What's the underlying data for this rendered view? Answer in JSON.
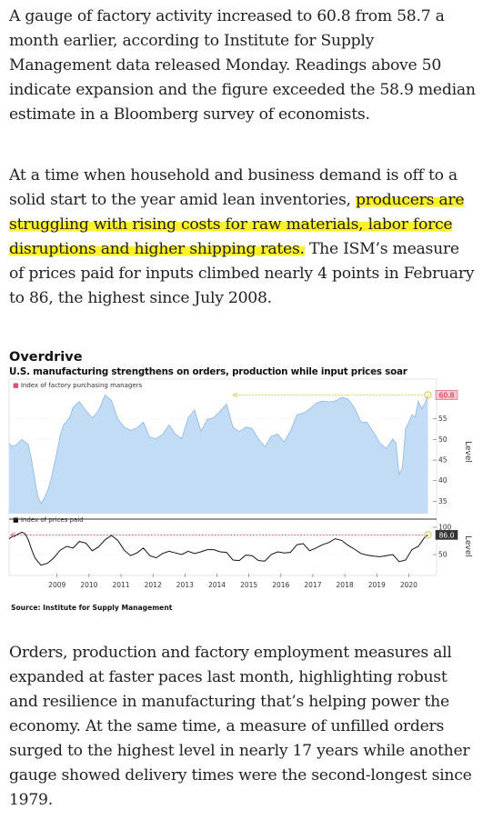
{
  "article": {
    "paragraph1": "A gauge of factory activity increased to 60.8 from 58.7 a month earlier, according to Institute for Supply Management data released Monday. Readings above 50 indicate expansion and the figure exceeded the 58.9 median estimate in a Bloomberg survey of economists.",
    "paragraph2_before": "At a time when household and business demand is off to a solid start to the year amid lean inventories, ",
    "paragraph2_highlight": "producers are struggling with rising costs for raw materials, labor force disruptions and higher shipping rates.",
    "paragraph2_after": " The ISM’s measure of prices paid for inputs climbed nearly 4 points in February to 86, the highest since July 2008.",
    "paragraph3": "Orders, production and factory employment measures all expanded at faster paces last month, highlighting robust and resilience in manufacturing that’s helping power the economy. At the same time, a measure of unfilled orders surged to the highest level in nearly 17 years while another gauge showed delivery times were the second-longest since 1979."
  },
  "highlight_color": "#fff22a",
  "chart_data": {
    "type": "area",
    "title": "Overdrive",
    "subtitle": "U.S. manufacturing strengthens on orders, production while input prices soar",
    "source": "Source: Institute for Supply Management",
    "x_ticks": [
      "2009",
      "2010",
      "2011",
      "2012",
      "2013",
      "2014",
      "2015",
      "2016",
      "2017",
      "2018",
      "2019",
      "2020"
    ],
    "xlim": [
      2008.0,
      2021.2
    ],
    "panels": [
      {
        "legend": "Index of factory purchasing managers",
        "legend_color": "#e0506a",
        "ylabel": "Level",
        "ylim": [
          32,
          62
        ],
        "y_ticks": [
          "55",
          "50",
          "45",
          "40",
          "35"
        ],
        "y_tick_values": [
          55,
          50,
          45,
          40,
          35
        ],
        "last_value_label": "60.8",
        "last_value": 60.8,
        "fill_color": "#c3dcf6",
        "line_color": "#8fb6e3",
        "x": [
          2008.0,
          2008.1,
          2008.2,
          2008.3,
          2008.4,
          2008.5,
          2008.6,
          2008.7,
          2008.8,
          2008.9,
          2009.0,
          2009.1,
          2009.2,
          2009.3,
          2009.4,
          2009.5,
          2009.6,
          2009.7,
          2009.8,
          2009.9,
          2010.0,
          2010.2,
          2010.4,
          2010.6,
          2010.8,
          2011.0,
          2011.2,
          2011.4,
          2011.6,
          2011.8,
          2012.0,
          2012.2,
          2012.4,
          2012.6,
          2012.8,
          2013.0,
          2013.2,
          2013.4,
          2013.6,
          2013.8,
          2014.0,
          2014.2,
          2014.4,
          2014.6,
          2014.8,
          2015.0,
          2015.2,
          2015.4,
          2015.6,
          2015.8,
          2016.0,
          2016.2,
          2016.4,
          2016.6,
          2016.8,
          2017.0,
          2017.2,
          2017.4,
          2017.6,
          2017.8,
          2018.0,
          2018.2,
          2018.4,
          2018.6,
          2018.8,
          2019.0,
          2019.2,
          2019.4,
          2019.6,
          2019.8,
          2020.0,
          2020.1,
          2020.2,
          2020.3,
          2020.4,
          2020.5,
          2020.6,
          2020.7,
          2020.8,
          2020.9,
          2021.0,
          2021.1
        ],
        "values": [
          49,
          48.3,
          48.6,
          49.2,
          50,
          49.4,
          48.8,
          45.2,
          40.5,
          36.2,
          34.5,
          35.8,
          37.5,
          40,
          43.5,
          47,
          51,
          53.5,
          54.4,
          55.4,
          57.8,
          59.2,
          57,
          55.2,
          57,
          60.8,
          59.5,
          55,
          53,
          52.2,
          52.8,
          54.2,
          50.5,
          50.2,
          51.2,
          53.5,
          51.3,
          50.2,
          55.2,
          57.2,
          52,
          54.9,
          55.3,
          56.9,
          58.6,
          53,
          51.9,
          53,
          52.7,
          50.1,
          48.2,
          50.8,
          51.3,
          49.4,
          52,
          56,
          56.4,
          57.4,
          58.8,
          59.3,
          59.1,
          59.3,
          60.2,
          59.8,
          57.7,
          54.3,
          54.1,
          51.7,
          49.1,
          47.8,
          50.1,
          49.1,
          41.5,
          43.1,
          52.6,
          54.2,
          56,
          55.4,
          59.3,
          57.5,
          58.7,
          60.8
        ]
      },
      {
        "legend": "Index of prices paid",
        "legend_color": "#111111",
        "ylabel": "Level",
        "ylim": [
          25,
          105
        ],
        "y_ticks": [
          "100",
          "50"
        ],
        "y_tick_values": [
          100,
          50
        ],
        "last_value_label": "86.0",
        "last_value": 86.0,
        "line_color": "#111111",
        "x": [
          2008.0,
          2008.1,
          2008.2,
          2008.3,
          2008.4,
          2008.5,
          2008.6,
          2008.7,
          2008.8,
          2008.9,
          2009.0,
          2009.2,
          2009.4,
          2009.6,
          2009.8,
          2010.0,
          2010.2,
          2010.4,
          2010.6,
          2010.8,
          2011.0,
          2011.2,
          2011.4,
          2011.6,
          2011.8,
          2012.0,
          2012.2,
          2012.4,
          2012.6,
          2012.8,
          2013.0,
          2013.2,
          2013.4,
          2013.6,
          2013.8,
          2014.0,
          2014.2,
          2014.4,
          2014.6,
          2014.8,
          2015.0,
          2015.2,
          2015.4,
          2015.6,
          2015.8,
          2016.0,
          2016.2,
          2016.4,
          2016.6,
          2016.8,
          2017.0,
          2017.2,
          2017.4,
          2017.6,
          2017.8,
          2018.0,
          2018.2,
          2018.4,
          2018.6,
          2018.8,
          2019.0,
          2019.2,
          2019.4,
          2019.6,
          2019.8,
          2020.0,
          2020.2,
          2020.4,
          2020.6,
          2020.8,
          2021.0,
          2021.1
        ],
        "values": [
          79,
          83,
          85,
          88,
          91,
          88,
          77,
          60,
          45,
          37,
          30.5,
          34,
          44,
          58,
          65,
          62,
          74,
          71,
          57,
          64,
          77,
          85,
          76,
          58,
          48,
          53,
          62,
          48,
          44,
          52,
          56,
          53,
          50,
          56,
          52,
          55,
          59,
          59,
          55,
          54,
          40,
          39,
          49,
          48,
          39,
          38,
          50,
          55,
          53,
          54,
          68,
          70,
          57,
          62,
          68,
          72,
          79,
          76,
          67,
          60,
          52,
          49,
          47,
          46,
          48,
          50,
          37,
          40,
          59,
          65,
          82,
          86
        ]
      }
    ]
  }
}
